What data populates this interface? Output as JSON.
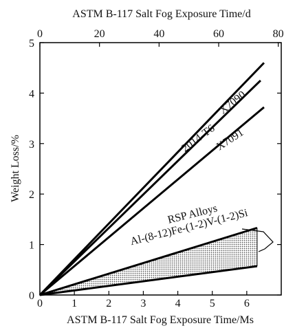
{
  "chart_data": {
    "type": "line",
    "title": "",
    "xlabel": "ASTM B-117 Salt Fog Exposure Time/Ms",
    "x2label": "ASTM B-117 Salt Fog Exposure Time/d",
    "ylabel": "Weight Loss/%",
    "xlim": [
      0,
      7
    ],
    "x2lim": [
      0,
      81
    ],
    "ylim": [
      0,
      5
    ],
    "xticks": [
      "0",
      "1",
      "2",
      "3",
      "4",
      "5",
      "6"
    ],
    "x2ticks": [
      "0",
      "20",
      "40",
      "60",
      "80"
    ],
    "yticks": [
      "0",
      "1",
      "2",
      "3",
      "4",
      "5"
    ],
    "grid": false,
    "series": [
      {
        "name": "X7090",
        "x": [
          0,
          6.5
        ],
        "y": [
          0,
          4.6
        ]
      },
      {
        "name": "2014-T6",
        "x": [
          0,
          6.4
        ],
        "y": [
          0,
          4.25
        ]
      },
      {
        "name": "X7091",
        "x": [
          0,
          6.5
        ],
        "y": [
          0,
          3.72
        ]
      },
      {
        "name": "",
        "x": [
          0,
          6.3
        ],
        "y": [
          0,
          1.33
        ]
      },
      {
        "name": "",
        "x": [
          0,
          6.3
        ],
        "y": [
          0,
          0.57
        ]
      }
    ],
    "band": {
      "name": "RSP Alloys Al-(8-12)Fe-(1-2)V-(1-2)Si",
      "x": [
        0,
        6.3
      ],
      "upper": [
        0,
        1.33
      ],
      "lower": [
        0,
        0.57
      ]
    },
    "annotations": [
      "RSP Alloys",
      "Al-(8-12)Fe-(1-2)V-(1-2)Si"
    ],
    "line_color": "#000000"
  }
}
